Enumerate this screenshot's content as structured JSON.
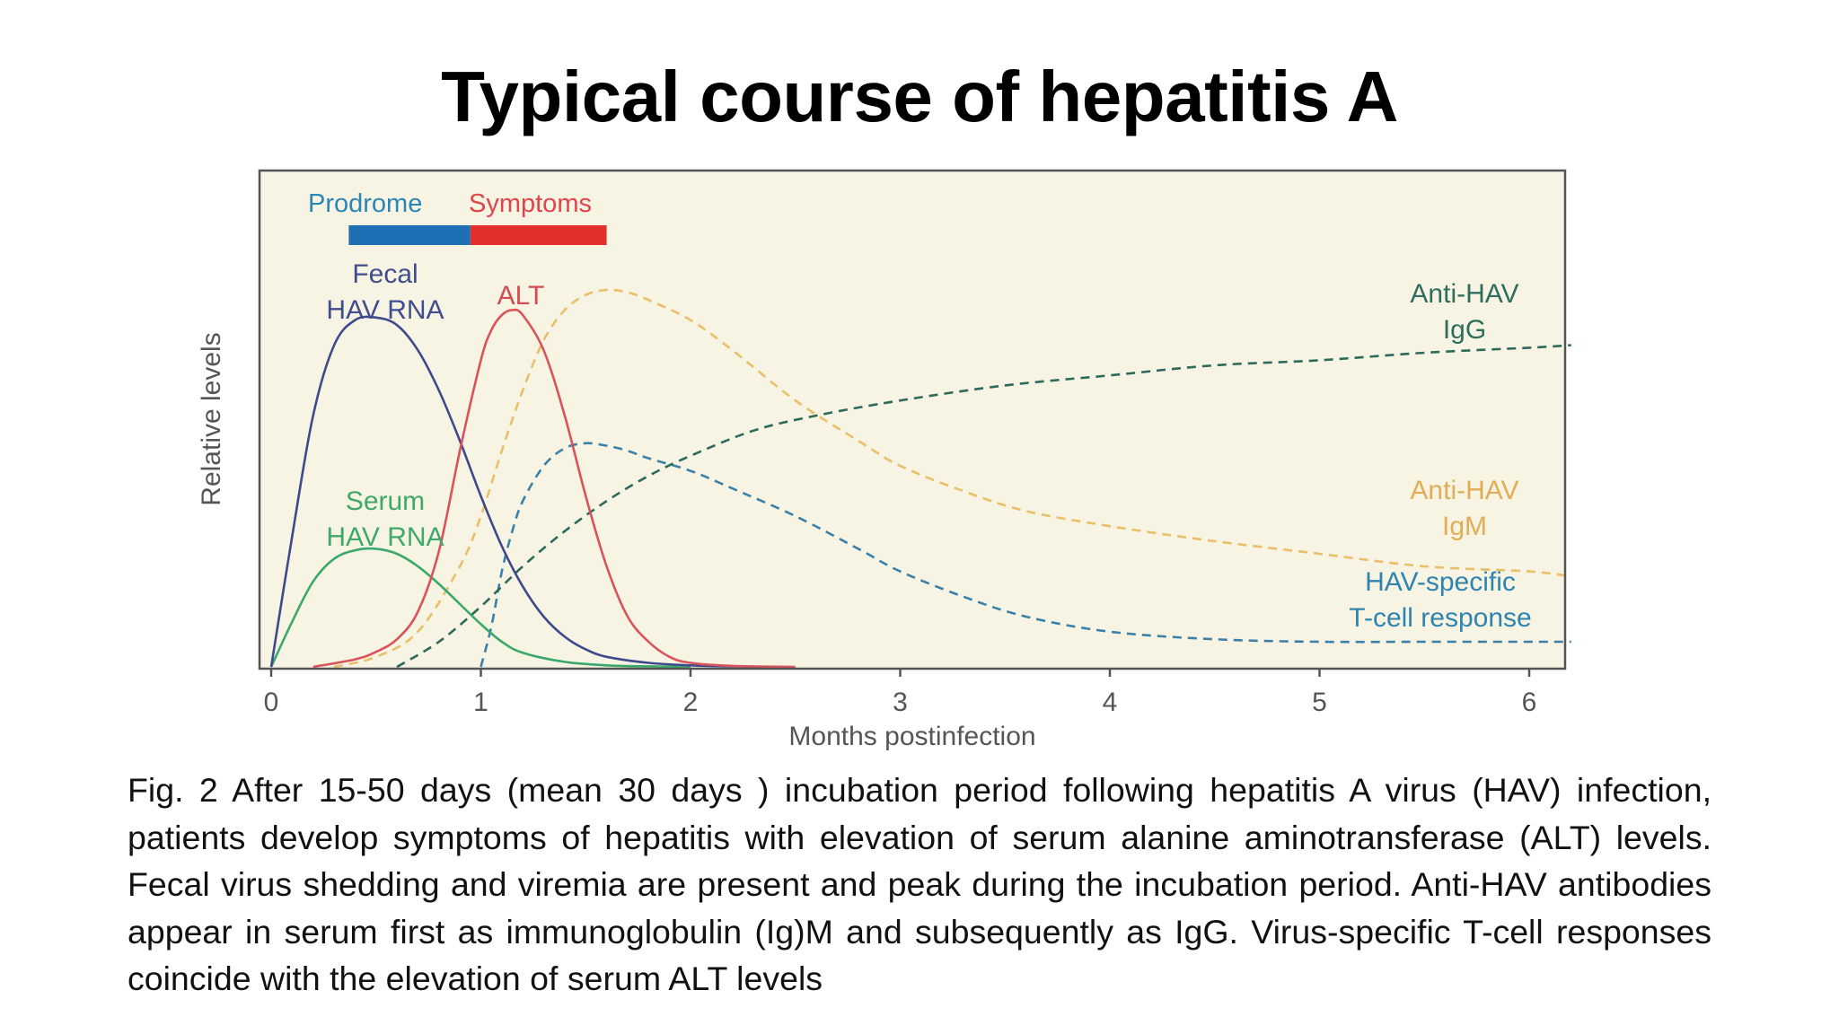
{
  "title": "Typical course of hepatitis A",
  "caption": "Fig. 2  After 15-50 days (mean 30 days ) incubation period following hepatitis A virus (HAV) infection, patients develop symptoms of hepatitis with elevation of serum alanine aminotransferase (ALT) levels. Fecal virus shedding and viremia are present and peak during the incubation period. Anti-HAV antibodies appear in serum first as immunoglobulin (Ig)M and subsequently as IgG. Virus-specific T-cell responses coincide with the elevation of serum ALT levels",
  "colors": {
    "plot_bg": "#f7f4e4",
    "prodrome": "#1f6fb4",
    "symptoms": "#e42f2f",
    "fecal": "#3e4a8c",
    "serum": "#3aa86b",
    "alt": "#d9535a",
    "igm": "#e9bf6a",
    "tcell": "#3a80a8",
    "igg": "#2c6a5c"
  },
  "chart_data": {
    "type": "line",
    "title": "",
    "xlabel": "Months postinfection",
    "ylabel": "Relative levels",
    "xlim": [
      0,
      6.2
    ],
    "ylim": [
      0,
      1.0
    ],
    "xticks": [
      "0",
      "1",
      "2",
      "3",
      "4",
      "5",
      "6"
    ],
    "grid": false,
    "phases": [
      {
        "name": "Prodrome",
        "start": 0.37,
        "end": 0.95
      },
      {
        "name": "Symptoms",
        "start": 0.95,
        "end": 1.6
      }
    ],
    "series": [
      {
        "name": "Fecal HAV RNA",
        "label_lines": [
          "Fecal",
          "HAV RNA"
        ],
        "style": "solid",
        "color_key": "fecal",
        "x": [
          0,
          0.1,
          0.2,
          0.3,
          0.4,
          0.5,
          0.6,
          0.7,
          0.8,
          0.9,
          1.0,
          1.1,
          1.2,
          1.3,
          1.4,
          1.5,
          1.6,
          1.8,
          2.0,
          2.2,
          2.4
        ],
        "y": [
          0,
          0.26,
          0.5,
          0.64,
          0.69,
          0.695,
          0.68,
          0.63,
          0.55,
          0.45,
          0.34,
          0.24,
          0.16,
          0.1,
          0.06,
          0.035,
          0.02,
          0.008,
          0.003,
          0.001,
          0
        ]
      },
      {
        "name": "Serum HAV RNA",
        "label_lines": [
          "Serum",
          "HAV RNA"
        ],
        "style": "solid",
        "color_key": "serum",
        "x": [
          0,
          0.1,
          0.2,
          0.3,
          0.4,
          0.5,
          0.6,
          0.7,
          0.8,
          0.9,
          1.0,
          1.1,
          1.2,
          1.4,
          1.6,
          1.8,
          2.0
        ],
        "y": [
          0,
          0.09,
          0.17,
          0.215,
          0.232,
          0.235,
          0.225,
          0.2,
          0.165,
          0.125,
          0.085,
          0.05,
          0.028,
          0.01,
          0.003,
          0.001,
          0
        ]
      },
      {
        "name": "ALT",
        "label_lines": [
          "ALT"
        ],
        "style": "solid",
        "color_key": "alt",
        "x": [
          0.2,
          0.4,
          0.5,
          0.6,
          0.7,
          0.8,
          0.9,
          1.0,
          1.05,
          1.1,
          1.15,
          1.2,
          1.3,
          1.4,
          1.5,
          1.6,
          1.7,
          1.8,
          1.9,
          2.0,
          2.2,
          2.5
        ],
        "y": [
          0,
          0.015,
          0.03,
          0.055,
          0.11,
          0.23,
          0.43,
          0.61,
          0.67,
          0.7,
          0.71,
          0.7,
          0.63,
          0.5,
          0.34,
          0.2,
          0.1,
          0.05,
          0.02,
          0.008,
          0.002,
          0
        ]
      },
      {
        "name": "Anti-HAV IgM",
        "label_lines": [
          "Anti-HAV",
          "IgM"
        ],
        "style": "dashed",
        "color_key": "igm",
        "x": [
          0.3,
          0.5,
          0.7,
          0.9,
          1.0,
          1.1,
          1.2,
          1.3,
          1.4,
          1.5,
          1.6,
          1.7,
          1.8,
          2.0,
          2.2,
          2.5,
          2.8,
          3.0,
          3.3,
          3.6,
          4.0,
          4.5,
          5.0,
          5.5,
          6.0,
          6.2
        ],
        "y": [
          0,
          0.02,
          0.07,
          0.2,
          0.3,
          0.43,
          0.55,
          0.65,
          0.71,
          0.74,
          0.75,
          0.745,
          0.73,
          0.69,
          0.63,
          0.53,
          0.45,
          0.4,
          0.35,
          0.31,
          0.28,
          0.25,
          0.225,
          0.2,
          0.19,
          0.18
        ]
      },
      {
        "name": "HAV-specific T-cell response",
        "label_lines": [
          "HAV-specific",
          "T-cell response"
        ],
        "style": "dashed",
        "color_key": "tcell",
        "x": [
          1.0,
          1.05,
          1.1,
          1.15,
          1.2,
          1.3,
          1.4,
          1.5,
          1.6,
          1.7,
          1.8,
          2.0,
          2.2,
          2.5,
          2.8,
          3.0,
          3.3,
          3.6,
          4.0,
          4.5,
          5.0,
          5.5,
          6.0,
          6.2
        ],
        "y": [
          0,
          0.08,
          0.19,
          0.27,
          0.33,
          0.4,
          0.435,
          0.445,
          0.44,
          0.43,
          0.415,
          0.39,
          0.355,
          0.3,
          0.235,
          0.19,
          0.14,
          0.1,
          0.07,
          0.055,
          0.05,
          0.05,
          0.05,
          0.05
        ]
      },
      {
        "name": "Anti-HAV IgG",
        "label_lines": [
          "Anti-HAV",
          "IgG"
        ],
        "style": "dashed",
        "color_key": "igg",
        "x": [
          0.6,
          0.8,
          1.0,
          1.2,
          1.4,
          1.6,
          1.8,
          2.0,
          2.3,
          2.6,
          3.0,
          3.5,
          4.0,
          4.5,
          5.0,
          5.5,
          6.0,
          6.2
        ],
        "y": [
          0,
          0.05,
          0.12,
          0.2,
          0.27,
          0.33,
          0.38,
          0.42,
          0.47,
          0.5,
          0.53,
          0.56,
          0.58,
          0.6,
          0.61,
          0.625,
          0.635,
          0.64
        ]
      }
    ]
  }
}
